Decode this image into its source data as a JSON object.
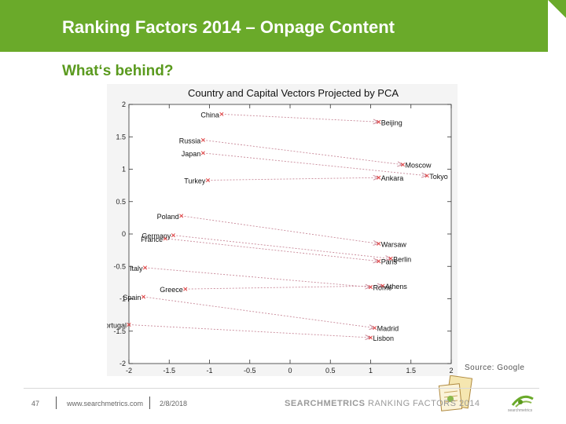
{
  "slide": {
    "title": "Ranking Factors 2014 – Onpage Content",
    "subtitle": "What‘s behind?",
    "source": "Source: Google",
    "colors": {
      "header": "#6aaa2a",
      "subtitle": "#5a9a1e",
      "marker": "#e04040",
      "arrow": "#c98a9a"
    }
  },
  "footer": {
    "page_number": "47",
    "url": "www.searchmetrics.com",
    "date": "2/8/2018",
    "brand_bold": "SEARCHMETRICS",
    "brand_rest": " RANKING FACTORS 2014",
    "logo_text": "searchmetrics"
  },
  "chart_data": {
    "type": "scatter",
    "title": "Country and Capital Vectors Projected by PCA",
    "xlabel": "",
    "ylabel": "",
    "xlim": [
      -2,
      2
    ],
    "ylim": [
      -2,
      2
    ],
    "xticks": [
      "-2",
      "-1.5",
      "-1",
      "-0.5",
      "0",
      "0.5",
      "1",
      "1.5",
      "2"
    ],
    "yticks": [
      "2",
      "1.5",
      "1",
      "0.5",
      "0",
      "-0.5",
      "-1",
      "-1.5",
      "-2"
    ],
    "grid": false,
    "points": [
      {
        "label": "China",
        "x": -0.85,
        "y": 1.85
      },
      {
        "label": "Beijing",
        "x": 1.1,
        "y": 1.73
      },
      {
        "label": "Russia",
        "x": -1.08,
        "y": 1.45
      },
      {
        "label": "Moscow",
        "x": 1.4,
        "y": 1.07
      },
      {
        "label": "Japan",
        "x": -1.08,
        "y": 1.25
      },
      {
        "label": "Tokyo",
        "x": 1.7,
        "y": 0.9
      },
      {
        "label": "Turkey",
        "x": -1.02,
        "y": 0.83
      },
      {
        "label": "Ankara",
        "x": 1.1,
        "y": 0.87
      },
      {
        "label": "Poland",
        "x": -1.35,
        "y": 0.28
      },
      {
        "label": "Warsaw",
        "x": 1.1,
        "y": -0.15
      },
      {
        "label": "Germany",
        "x": -1.45,
        "y": -0.02
      },
      {
        "label": "Berlin",
        "x": 1.25,
        "y": -0.38
      },
      {
        "label": "France",
        "x": -1.55,
        "y": -0.07
      },
      {
        "label": "Paris",
        "x": 1.1,
        "y": -0.42
      },
      {
        "label": "Italy",
        "x": -1.8,
        "y": -0.52
      },
      {
        "label": "Greece",
        "x": -1.3,
        "y": -0.85
      },
      {
        "label": "Athens",
        "x": 1.15,
        "y": -0.8
      },
      {
        "label": "Rome",
        "x": 1.0,
        "y": -0.82
      },
      {
        "label": "Spain",
        "x": -1.82,
        "y": -0.97
      },
      {
        "label": "Madrid",
        "x": 1.05,
        "y": -1.45
      },
      {
        "label": "Portugal",
        "x": -2.0,
        "y": -1.4
      },
      {
        "label": "Lisbon",
        "x": 1.0,
        "y": -1.6
      }
    ],
    "pairs": [
      [
        "China",
        "Beijing"
      ],
      [
        "Russia",
        "Moscow"
      ],
      [
        "Japan",
        "Tokyo"
      ],
      [
        "Turkey",
        "Ankara"
      ],
      [
        "Poland",
        "Warsaw"
      ],
      [
        "Germany",
        "Berlin"
      ],
      [
        "France",
        "Paris"
      ],
      [
        "Italy",
        "Rome"
      ],
      [
        "Greece",
        "Athens"
      ],
      [
        "Spain",
        "Madrid"
      ],
      [
        "Portugal",
        "Lisbon"
      ]
    ]
  }
}
